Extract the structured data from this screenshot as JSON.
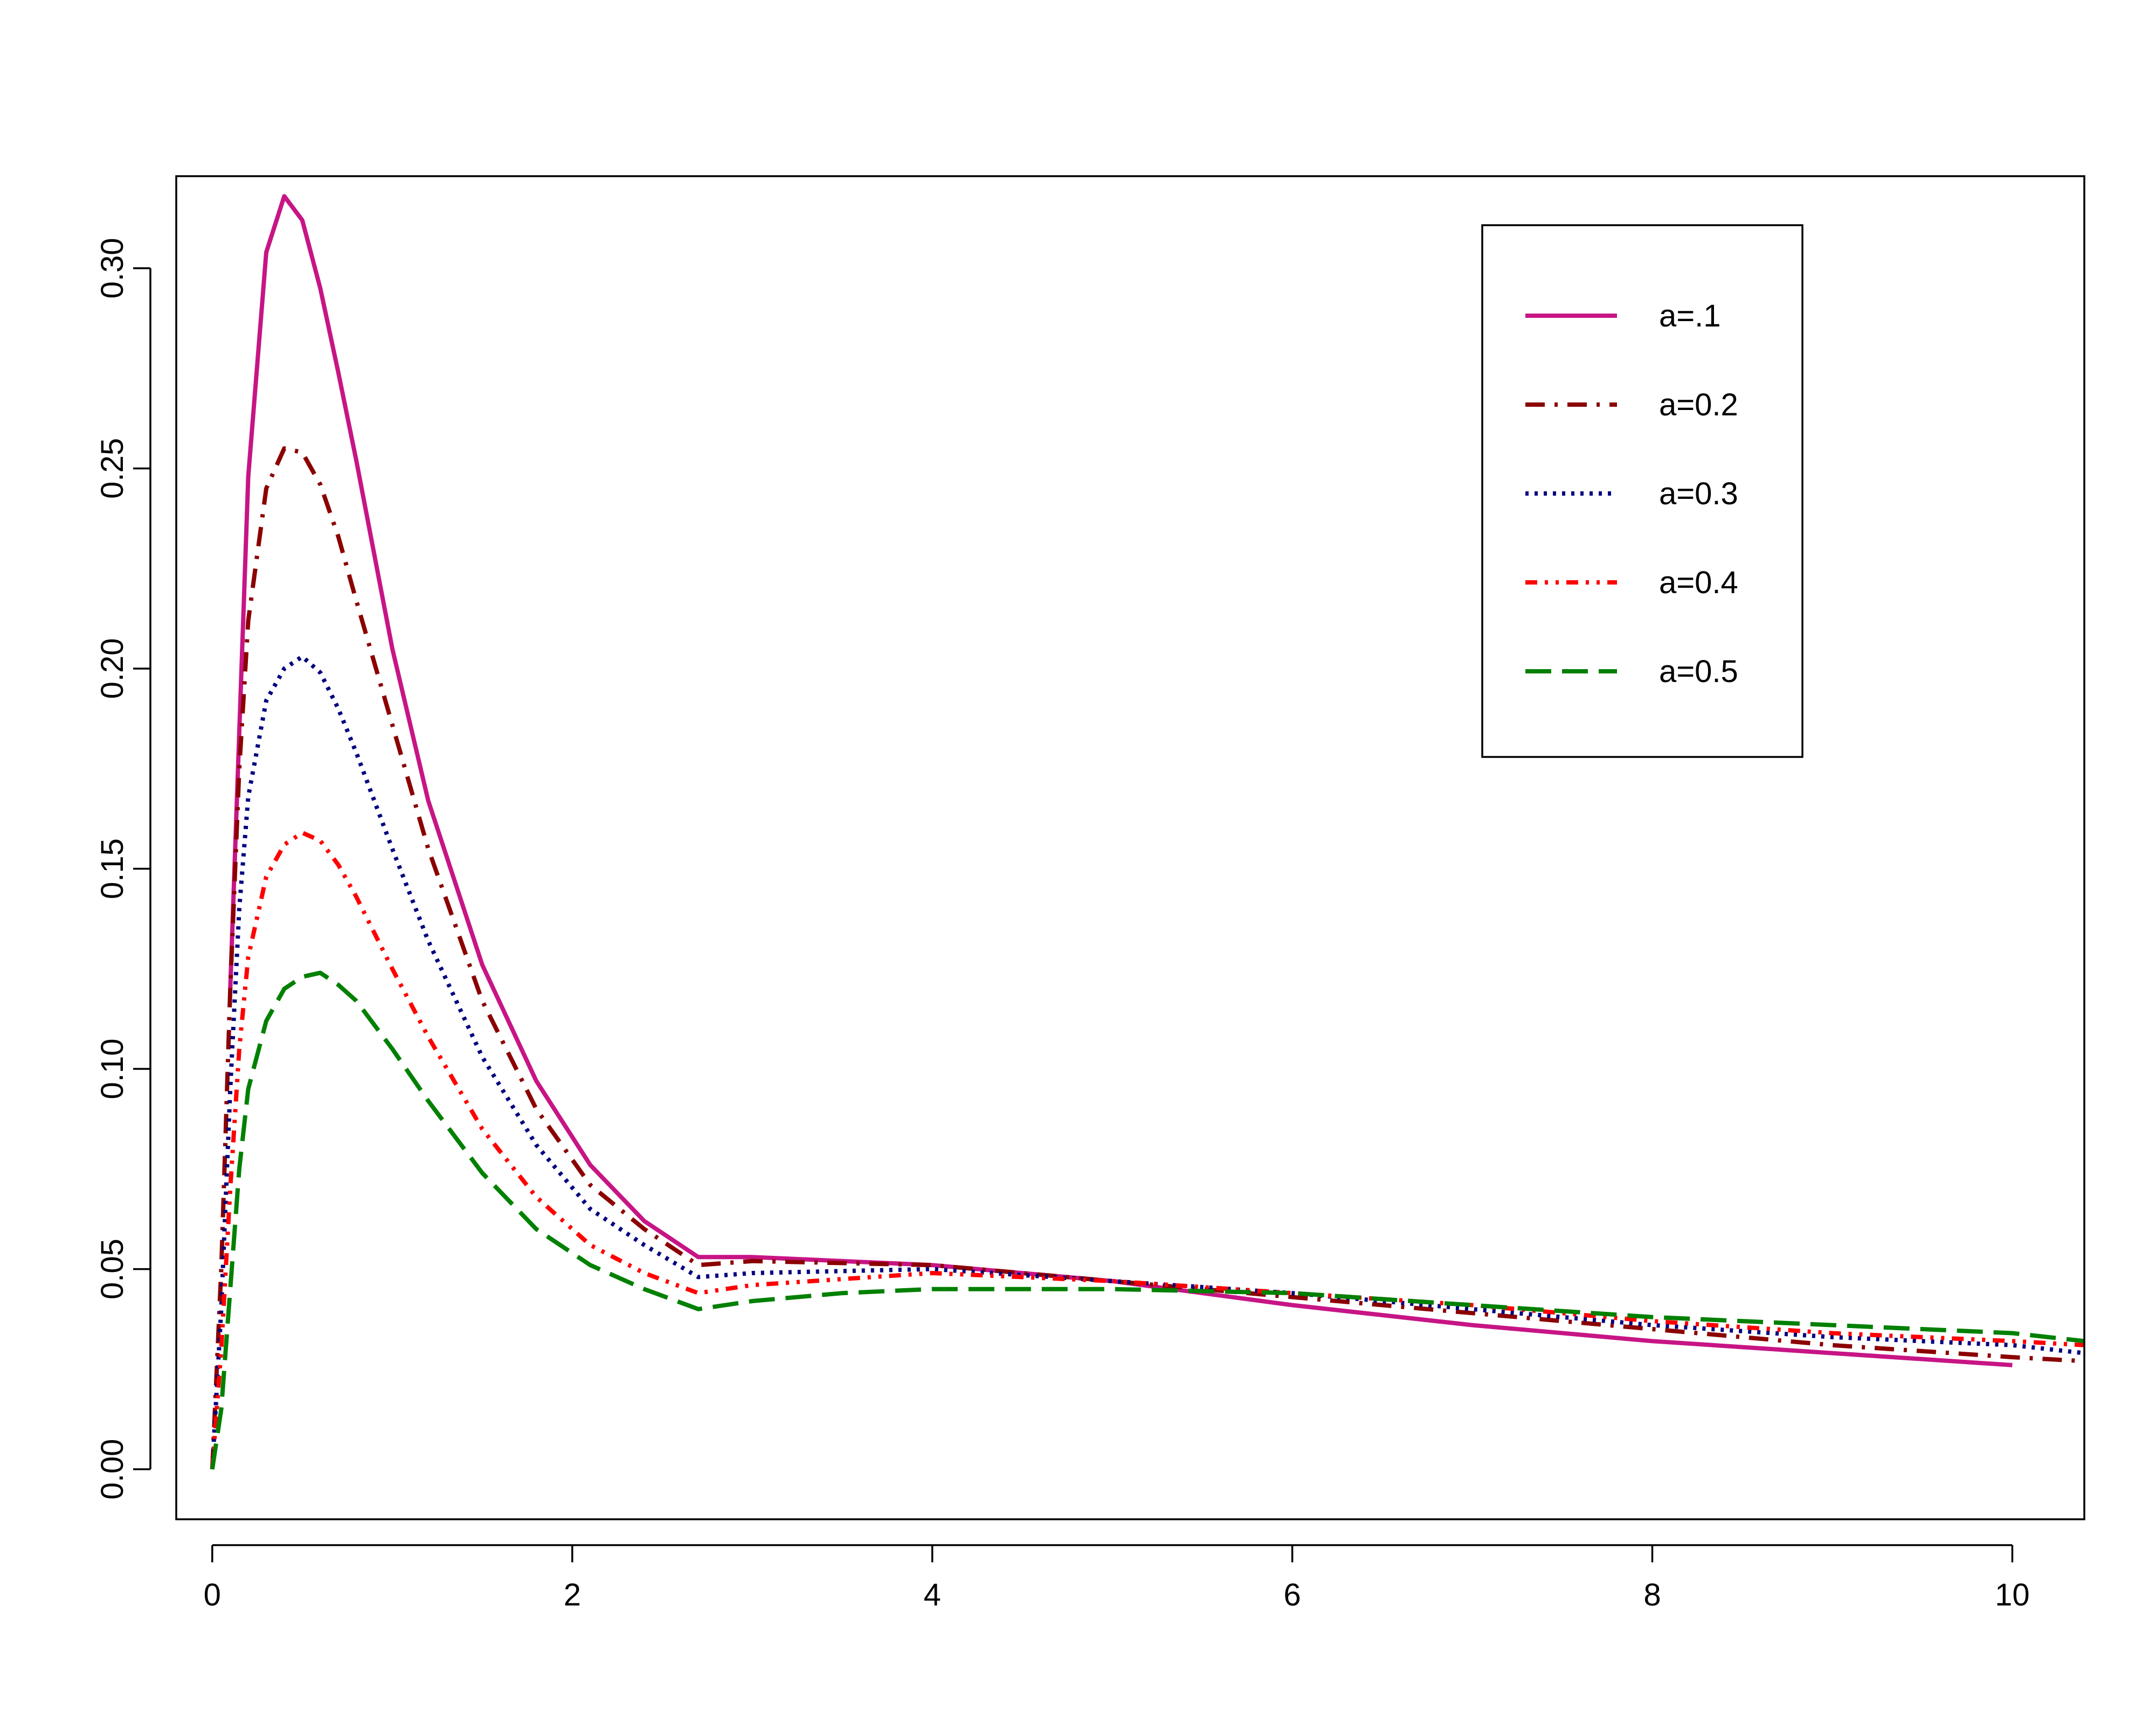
{
  "chart_data": {
    "type": "line",
    "title": "",
    "xlabel": "",
    "ylabel": "",
    "xlim": [
      -0.2,
      10.4
    ],
    "ylim": [
      -0.0125,
      0.323
    ],
    "x_ticks": [
      0,
      2,
      4,
      6,
      8,
      10
    ],
    "x_tick_labels": [
      "0",
      "2",
      "4",
      "6",
      "8",
      "10"
    ],
    "y_ticks": [
      0,
      0.05,
      0.1,
      0.15,
      0.2,
      0.25,
      0.3
    ],
    "y_tick_labels": [
      "0.00",
      "0.05",
      "0.10",
      "0.15",
      "0.20",
      "0.25",
      "0.30"
    ],
    "grid": false,
    "legend_position": "top-right",
    "series": [
      {
        "name": "a=.1",
        "color": "#C71585",
        "dash": "solid",
        "x": [
          0.1,
          0.2,
          0.3,
          0.4,
          0.5,
          0.6,
          0.7,
          0.8,
          1.0,
          1.2,
          1.5,
          1.8,
          2.1,
          2.4,
          2.7,
          3.0,
          3.5,
          4.0,
          5.0,
          6.0,
          7.0,
          8.0,
          9.0,
          10.0
        ],
        "y": [
          0.12,
          0.248,
          0.304,
          0.318,
          0.312,
          0.295,
          0.274,
          0.252,
          0.205,
          0.167,
          0.126,
          0.097,
          0.076,
          0.062,
          0.053,
          0.053,
          0.052,
          0.051,
          0.047,
          0.041,
          0.036,
          0.032,
          0.029,
          0.026
        ]
      },
      {
        "name": "a=0.2",
        "color": "#8B0000",
        "dash": "dashdot",
        "x": [
          0.0,
          0.05,
          0.1,
          0.15,
          0.2,
          0.3,
          0.4,
          0.5,
          0.6,
          0.7,
          0.8,
          1.0,
          1.2,
          1.5,
          1.8,
          2.1,
          2.4,
          2.7,
          3.0,
          4.0,
          5.0,
          6.0,
          7.0,
          8.0,
          9.0,
          10.0,
          10.4
        ],
        "y": [
          0.0,
          0.05,
          0.12,
          0.175,
          0.212,
          0.245,
          0.255,
          0.254,
          0.246,
          0.233,
          0.217,
          0.186,
          0.155,
          0.117,
          0.09,
          0.071,
          0.06,
          0.051,
          0.052,
          0.051,
          0.047,
          0.043,
          0.039,
          0.035,
          0.031,
          0.028,
          0.027
        ]
      },
      {
        "name": "a=0.3",
        "color": "#000080",
        "dash": "dotted",
        "x": [
          0.0,
          0.05,
          0.1,
          0.15,
          0.2,
          0.3,
          0.4,
          0.5,
          0.6,
          0.7,
          0.8,
          1.0,
          1.2,
          1.5,
          1.8,
          2.1,
          2.4,
          2.7,
          3.0,
          4.0,
          5.0,
          6.0,
          7.0,
          8.0,
          9.0,
          10.0,
          10.4
        ],
        "y": [
          0.0,
          0.04,
          0.095,
          0.14,
          0.168,
          0.192,
          0.2,
          0.203,
          0.199,
          0.19,
          0.179,
          0.155,
          0.132,
          0.103,
          0.081,
          0.065,
          0.056,
          0.048,
          0.049,
          0.05,
          0.047,
          0.044,
          0.04,
          0.036,
          0.033,
          0.031,
          0.029
        ]
      },
      {
        "name": "a=0.4",
        "color": "#FF0000",
        "dash": "dashdotdot",
        "x": [
          0.0,
          0.05,
          0.1,
          0.15,
          0.2,
          0.3,
          0.4,
          0.5,
          0.6,
          0.7,
          0.8,
          1.0,
          1.2,
          1.5,
          1.8,
          2.1,
          2.4,
          2.7,
          3.0,
          4.0,
          5.0,
          6.0,
          7.0,
          8.0,
          9.0,
          10.0,
          10.4
        ],
        "y": [
          0.0,
          0.03,
          0.07,
          0.105,
          0.128,
          0.148,
          0.156,
          0.159,
          0.157,
          0.151,
          0.143,
          0.125,
          0.108,
          0.085,
          0.068,
          0.056,
          0.049,
          0.044,
          0.046,
          0.049,
          0.047,
          0.044,
          0.041,
          0.037,
          0.034,
          0.032,
          0.031
        ]
      },
      {
        "name": "a=0.5",
        "color": "#008000",
        "dash": "longdash",
        "x": [
          0.0,
          0.05,
          0.1,
          0.15,
          0.2,
          0.3,
          0.4,
          0.5,
          0.6,
          0.7,
          0.8,
          1.0,
          1.2,
          1.5,
          1.8,
          2.1,
          2.4,
          2.7,
          3.0,
          3.5,
          4.0,
          5.0,
          6.0,
          7.0,
          8.0,
          9.0,
          10.0,
          10.4
        ],
        "y": [
          0.0,
          0.015,
          0.045,
          0.075,
          0.095,
          0.112,
          0.12,
          0.123,
          0.124,
          0.121,
          0.117,
          0.105,
          0.092,
          0.074,
          0.06,
          0.051,
          0.045,
          0.04,
          0.042,
          0.044,
          0.045,
          0.045,
          0.044,
          0.041,
          0.038,
          0.036,
          0.034,
          0.032
        ]
      }
    ]
  }
}
